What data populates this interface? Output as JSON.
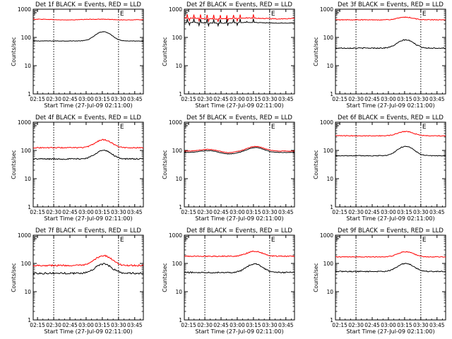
{
  "figure": {
    "colors": {
      "events": "#000000",
      "lld": "#ff0000",
      "frame": "#000000",
      "background": "#ffffff"
    }
  },
  "chart_data": [
    {
      "type": "line",
      "title": "Det 1f BLACK = Events, RED = LLD",
      "xlabel": "Start Time (27-Jul-09 02:11:00)",
      "ylabel": "Counts/sec",
      "y_scale": "log",
      "ylim": [
        1,
        1000
      ],
      "y_tick_labels": [
        "1",
        "10",
        "100",
        "1000"
      ],
      "x_tick_labels": [
        "02:15",
        "02:30",
        "02:45",
        "03:00",
        "03:15",
        "03:30",
        "03:45"
      ],
      "x_ticks_min": [
        15,
        30,
        45,
        60,
        75,
        90,
        105
      ],
      "xlim": [
        11,
        113
      ],
      "markers": [
        {
          "x_min": 30,
          "label": "",
          "side": "left"
        },
        {
          "x_min": 90,
          "label": "E",
          "side": "right"
        }
      ],
      "series": [
        {
          "color": "#000000",
          "profile": "hump",
          "base": 75,
          "peak": 160,
          "noise": 0.02,
          "spikes": false
        },
        {
          "color": "#ff0000",
          "profile": "flat",
          "base": 430,
          "peak": 470,
          "noise": 0.02,
          "spikes": false
        }
      ]
    },
    {
      "type": "line",
      "title": "Det 2f BLACK = Events, RED = LLD",
      "xlabel": "Start Time (27-Jul-09 02:11:00)",
      "ylabel": "Counts/sec",
      "y_scale": "log",
      "ylim": [
        1,
        1000
      ],
      "y_tick_labels": [
        "1",
        "10",
        "100",
        "1000"
      ],
      "x_tick_labels": [
        "02:15",
        "02:30",
        "02:45",
        "03:00",
        "03:15",
        "03:30",
        "03:45"
      ],
      "x_ticks_min": [
        15,
        30,
        45,
        60,
        75,
        90,
        105
      ],
      "xlim": [
        11,
        113
      ],
      "markers": [
        {
          "x_min": 30,
          "label": "",
          "side": "left"
        },
        {
          "x_min": 90,
          "label": "E",
          "side": "right"
        }
      ],
      "series": [
        {
          "color": "#000000",
          "profile": "flat",
          "base": 330,
          "peak": 350,
          "noise": 0.02,
          "spikes": true
        },
        {
          "color": "#ff0000",
          "profile": "flat",
          "base": 470,
          "peak": 500,
          "noise": 0.03,
          "spikes": true
        }
      ]
    },
    {
      "type": "line",
      "title": "Det 3f BLACK = Events, RED = LLD",
      "xlabel": "Start Time (27-Jul-09 02:11:00)",
      "ylabel": "Counts/sec",
      "y_scale": "log",
      "ylim": [
        1,
        1000
      ],
      "y_tick_labels": [
        "1",
        "10",
        "100",
        "1000"
      ],
      "x_tick_labels": [
        "02:15",
        "02:30",
        "02:45",
        "03:00",
        "03:15",
        "03:30",
        "03:45"
      ],
      "x_ticks_min": [
        15,
        30,
        45,
        60,
        75,
        90,
        105
      ],
      "xlim": [
        11,
        113
      ],
      "markers": [
        {
          "x_min": 30,
          "label": "",
          "side": "left"
        },
        {
          "x_min": 90,
          "label": "E",
          "side": "right"
        }
      ],
      "series": [
        {
          "color": "#000000",
          "profile": "hump",
          "base": 42,
          "peak": 82,
          "noise": 0.04,
          "spikes": false
        },
        {
          "color": "#ff0000",
          "profile": "hump",
          "base": 420,
          "peak": 520,
          "noise": 0.03,
          "spikes": false
        }
      ]
    },
    {
      "type": "line",
      "title": "Det 4f BLACK = Events, RED = LLD",
      "xlabel": "Start Time (27-Jul-09 02:11:00)",
      "ylabel": "Counts/sec",
      "y_scale": "log",
      "ylim": [
        1,
        1000
      ],
      "y_tick_labels": [
        "1",
        "10",
        "100",
        "1000"
      ],
      "x_tick_labels": [
        "02:15",
        "02:30",
        "02:45",
        "03:00",
        "03:15",
        "03:30",
        "03:45"
      ],
      "x_ticks_min": [
        15,
        30,
        45,
        60,
        75,
        90,
        105
      ],
      "xlim": [
        11,
        113
      ],
      "markers": [
        {
          "x_min": 30,
          "label": "",
          "side": "left"
        },
        {
          "x_min": 90,
          "label": "E",
          "side": "right"
        }
      ],
      "series": [
        {
          "color": "#000000",
          "profile": "hump",
          "base": 50,
          "peak": 100,
          "noise": 0.05,
          "spikes": false
        },
        {
          "color": "#ff0000",
          "profile": "hump",
          "base": 125,
          "peak": 240,
          "noise": 0.04,
          "spikes": false
        }
      ]
    },
    {
      "type": "line",
      "title": "Det 5f BLACK = Events, RED = LLD",
      "xlabel": "Start Time (27-Jul-09 02:11:00)",
      "ylabel": "Counts/sec",
      "y_scale": "log",
      "ylim": [
        1,
        1000
      ],
      "y_tick_labels": [
        "1",
        "10",
        "100",
        "1000"
      ],
      "x_tick_labels": [
        "02:15",
        "02:30",
        "02:45",
        "03:00",
        "03:15",
        "03:30",
        "03:45"
      ],
      "x_ticks_min": [
        15,
        30,
        45,
        60,
        75,
        90,
        105
      ],
      "xlim": [
        11,
        113
      ],
      "markers": [
        {
          "x_min": 30,
          "label": "",
          "side": "left"
        },
        {
          "x_min": 90,
          "label": "E",
          "side": "right"
        }
      ],
      "series": [
        {
          "color": "#000000",
          "profile": "wave",
          "base": 85,
          "peak": 160,
          "noise": 0.02,
          "spikes": false
        },
        {
          "color": "#ff0000",
          "profile": "wave",
          "base": 95,
          "peak": 175,
          "noise": 0.02,
          "spikes": false
        }
      ]
    },
    {
      "type": "line",
      "title": "Det 6f BLACK = Events, RED = LLD",
      "xlabel": "Start Time (27-Jul-09 02:11:00)",
      "ylabel": "Counts/sec",
      "y_scale": "log",
      "ylim": [
        1,
        1000
      ],
      "y_tick_labels": [
        "1",
        "10",
        "100",
        "1000"
      ],
      "x_tick_labels": [
        "02:15",
        "02:30",
        "02:45",
        "03:00",
        "03:15",
        "03:30",
        "03:45"
      ],
      "x_ticks_min": [
        15,
        30,
        45,
        60,
        75,
        90,
        105
      ],
      "xlim": [
        11,
        113
      ],
      "markers": [
        {
          "x_min": 30,
          "label": "",
          "side": "left"
        },
        {
          "x_min": 90,
          "label": "E",
          "side": "right"
        }
      ],
      "series": [
        {
          "color": "#000000",
          "profile": "hump",
          "base": 65,
          "peak": 140,
          "noise": 0.03,
          "spikes": false
        },
        {
          "color": "#ff0000",
          "profile": "hump",
          "base": 330,
          "peak": 470,
          "noise": 0.03,
          "spikes": false
        }
      ]
    },
    {
      "type": "line",
      "title": "Det 7f BLACK = Events, RED = LLD",
      "xlabel": "Start Time (27-Jul-09 02:11:00)",
      "ylabel": "Counts/sec",
      "y_scale": "log",
      "ylim": [
        1,
        1000
      ],
      "y_tick_labels": [
        "1",
        "10",
        "100",
        "1000"
      ],
      "x_tick_labels": [
        "02:15",
        "02:30",
        "02:45",
        "03:00",
        "03:15",
        "03:30",
        "03:45"
      ],
      "x_ticks_min": [
        15,
        30,
        45,
        60,
        75,
        90,
        105
      ],
      "xlim": [
        11,
        113
      ],
      "markers": [
        {
          "x_min": 30,
          "label": "",
          "side": "left"
        },
        {
          "x_min": 90,
          "label": "E",
          "side": "right"
        }
      ],
      "series": [
        {
          "color": "#000000",
          "profile": "hump",
          "base": 45,
          "peak": 95,
          "noise": 0.07,
          "spikes": false
        },
        {
          "color": "#ff0000",
          "profile": "hump",
          "base": 85,
          "peak": 190,
          "noise": 0.06,
          "spikes": false
        }
      ]
    },
    {
      "type": "line",
      "title": "Det 8f BLACK = Events, RED = LLD",
      "xlabel": "Start Time (27-Jul-09 02:11:00)",
      "ylabel": "Counts/sec",
      "y_scale": "log",
      "ylim": [
        1,
        1000
      ],
      "y_tick_labels": [
        "1",
        "10",
        "100",
        "1000"
      ],
      "x_tick_labels": [
        "02:15",
        "02:30",
        "02:45",
        "03:00",
        "03:15",
        "03:30",
        "03:45"
      ],
      "x_ticks_min": [
        15,
        30,
        45,
        60,
        75,
        90,
        105
      ],
      "xlim": [
        11,
        113
      ],
      "markers": [
        {
          "x_min": 30,
          "label": "",
          "side": "left"
        },
        {
          "x_min": 90,
          "label": "E",
          "side": "right"
        }
      ],
      "series": [
        {
          "color": "#000000",
          "profile": "hump",
          "base": 48,
          "peak": 95,
          "noise": 0.05,
          "spikes": false
        },
        {
          "color": "#ff0000",
          "profile": "hump",
          "base": 180,
          "peak": 270,
          "noise": 0.04,
          "spikes": false
        }
      ]
    },
    {
      "type": "line",
      "title": "Det 9f BLACK = Events, RED = LLD",
      "xlabel": "Start Time (27-Jul-09 02:11:00)",
      "ylabel": "Counts/sec",
      "y_scale": "log",
      "ylim": [
        1,
        1000
      ],
      "y_tick_labels": [
        "1",
        "10",
        "100",
        "1000"
      ],
      "x_tick_labels": [
        "02:15",
        "02:30",
        "02:45",
        "03:00",
        "03:15",
        "03:30",
        "03:45"
      ],
      "x_ticks_min": [
        15,
        30,
        45,
        60,
        75,
        90,
        105
      ],
      "xlim": [
        11,
        113
      ],
      "markers": [
        {
          "x_min": 30,
          "label": "",
          "side": "left"
        },
        {
          "x_min": 90,
          "label": "E",
          "side": "right"
        }
      ],
      "series": [
        {
          "color": "#000000",
          "profile": "hump",
          "base": 52,
          "peak": 100,
          "noise": 0.04,
          "spikes": false
        },
        {
          "color": "#ff0000",
          "profile": "hump",
          "base": 170,
          "peak": 260,
          "noise": 0.03,
          "spikes": false
        }
      ]
    }
  ]
}
